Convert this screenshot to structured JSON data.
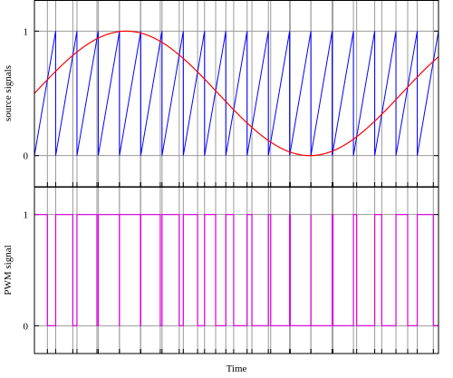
{
  "chart_data": [
    {
      "type": "line",
      "ylabel": "source signals",
      "xlabel": "",
      "ylim": [
        -0.25,
        1.25
      ],
      "xlim": [
        0,
        1
      ],
      "yticks": [
        0,
        1
      ],
      "ytick_labels": [
        "0",
        "1"
      ],
      "grid": true,
      "series": [
        {
          "kind": "sawtooth",
          "color": "#0000ff",
          "periods": 19,
          "min": 0,
          "max": 1
        },
        {
          "kind": "sine",
          "color": "#ff0000",
          "offset": 0.5,
          "amplitude": 0.5,
          "cycles": 1.1,
          "phase_deg": 0
        }
      ]
    },
    {
      "type": "line",
      "ylabel": "PWM signal",
      "xlabel": "Time",
      "ylim": [
        -0.25,
        1.25
      ],
      "xlim": [
        0,
        1
      ],
      "yticks": [
        0,
        1
      ],
      "ytick_labels": [
        "0",
        "1"
      ],
      "grid": true,
      "series": [
        {
          "kind": "pwm",
          "color": "#dd00dd",
          "low": 0,
          "high": 1
        }
      ]
    }
  ],
  "colors": {
    "grid": "#9a9a9a",
    "frame": "#000000",
    "sawtooth": "#0000ff",
    "sine": "#ff0000",
    "pwm": "#dd00dd"
  }
}
